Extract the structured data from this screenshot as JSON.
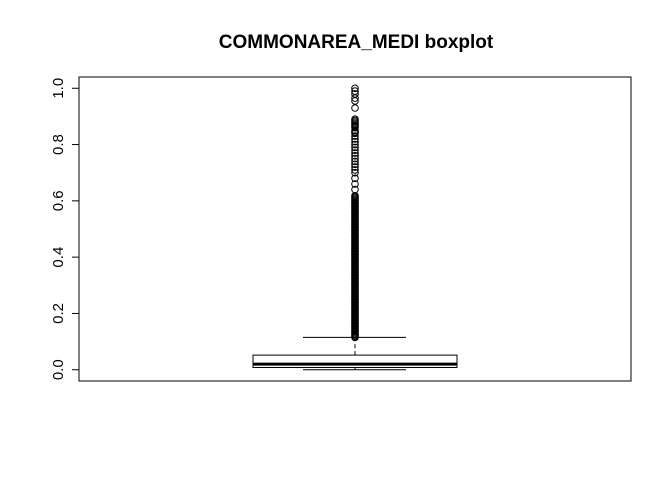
{
  "chart_data": {
    "type": "boxplot",
    "title": "COMMONAREA_MEDI boxplot",
    "xlabel": "",
    "ylabel": "",
    "ylim": [
      -0.04,
      1.04
    ],
    "yticks": [
      0.0,
      0.2,
      0.4,
      0.6,
      0.8,
      1.0
    ],
    "ytick_labels": [
      "0.0",
      "0.2",
      "0.4",
      "0.6",
      "0.8",
      "1.0"
    ],
    "grid": false,
    "box": {
      "whisker_low": 0.0,
      "q1": 0.008,
      "median": 0.02,
      "q3": 0.052,
      "whisker_high": 0.115
    },
    "outliers_dense_range": [
      0.115,
      0.62
    ],
    "outliers": [
      0.64,
      0.66,
      0.68,
      0.7,
      0.71,
      0.72,
      0.73,
      0.74,
      0.75,
      0.76,
      0.77,
      0.78,
      0.79,
      0.8,
      0.81,
      0.82,
      0.83,
      0.84,
      0.845,
      0.85,
      0.86,
      0.865,
      0.87,
      0.875,
      0.88,
      0.885,
      0.89,
      0.93,
      0.955,
      0.965,
      0.98,
      0.99,
      1.0
    ]
  }
}
